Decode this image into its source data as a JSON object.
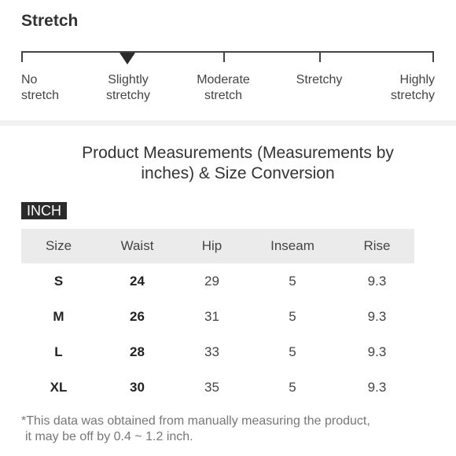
{
  "stretch": {
    "title": "Stretch",
    "levels": [
      {
        "line1": "No",
        "line2": "stretch"
      },
      {
        "line1": "Slightly",
        "line2": "stretchy"
      },
      {
        "line1": "Moderate",
        "line2": "stretch"
      },
      {
        "line1": "Stretchy",
        "line2": ""
      },
      {
        "line1": "Highly",
        "line2": "stretchy"
      }
    ],
    "selected_level": "Slightly stretchy"
  },
  "measurements": {
    "title_line1": "Product Measurements (Measurements by",
    "title_line2": "inches) & Size Conversion",
    "unit": "INCH",
    "headers": [
      "Size",
      "Waist",
      "Hip",
      "Inseam",
      "Rise"
    ],
    "rows": [
      [
        "S",
        "24",
        "29",
        "5",
        "9.3"
      ],
      [
        "M",
        "26",
        "31",
        "5",
        "9.3"
      ],
      [
        "L",
        "28",
        "33",
        "5",
        "9.3"
      ],
      [
        "XL",
        "30",
        "35",
        "5",
        "9.3"
      ]
    ],
    "footnote_line1": "*This data was obtained from manually measuring the product,",
    "footnote_line2": "it may be off by 0.4 ~ 1.2 inch."
  }
}
